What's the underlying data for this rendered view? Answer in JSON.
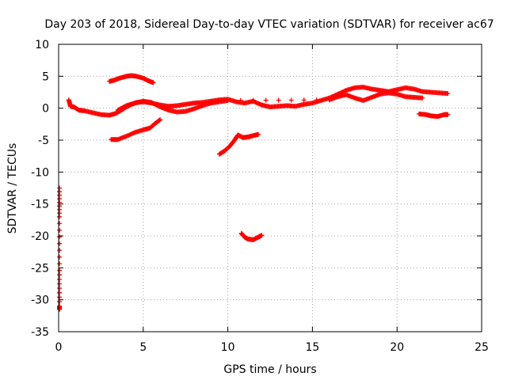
{
  "chart_data": {
    "type": "scatter",
    "title": "Day 203 of 2018, Sidereal Day-to-day VTEC variation (SDTVAR) for receiver ac67",
    "xlabel": "GPS time / hours",
    "ylabel": "SDTVAR / TECUs",
    "xlim": [
      0,
      25
    ],
    "ylim": [
      -35,
      10
    ],
    "xticks": [
      0,
      5,
      10,
      15,
      20,
      25
    ],
    "yticks": [
      10,
      5,
      0,
      -5,
      -10,
      -15,
      -20,
      -25,
      -30,
      -35
    ],
    "grid": true,
    "marker": "+",
    "color": "#ff0000",
    "series": [
      {
        "name": "main_track",
        "points": [
          [
            0.6,
            1.3
          ],
          [
            0.7,
            0.3
          ],
          [
            0.9,
            0.2
          ],
          [
            1.2,
            -0.3
          ],
          [
            1.5,
            -0.4
          ],
          [
            2.0,
            -0.7
          ],
          [
            2.5,
            -1.0
          ],
          [
            3.0,
            -1.1
          ],
          [
            3.4,
            -0.8
          ],
          [
            3.7,
            -0.3
          ],
          [
            4.0,
            0.2
          ],
          [
            4.3,
            0.6
          ],
          [
            4.6,
            0.9
          ],
          [
            5.0,
            1.0
          ],
          [
            5.5,
            0.8
          ],
          [
            6.0,
            0.5
          ],
          [
            6.5,
            0.3
          ],
          [
            7.0,
            0.4
          ],
          [
            7.5,
            0.6
          ],
          [
            8.0,
            0.8
          ],
          [
            8.5,
            0.9
          ],
          [
            9.0,
            1.1
          ],
          [
            9.5,
            1.3
          ],
          [
            10.0,
            1.4
          ],
          [
            10.5,
            1.0
          ],
          [
            11.0,
            0.8
          ],
          [
            11.5,
            1.1
          ],
          [
            12.0,
            0.5
          ],
          [
            12.5,
            0.2
          ],
          [
            13.0,
            0.3
          ],
          [
            13.5,
            0.4
          ],
          [
            14.0,
            0.3
          ],
          [
            14.5,
            0.6
          ],
          [
            15.0,
            0.8
          ],
          [
            15.5,
            1.2
          ],
          [
            16.0,
            1.6
          ],
          [
            16.5,
            2.2
          ],
          [
            17.0,
            2.8
          ],
          [
            17.5,
            3.2
          ],
          [
            18.0,
            3.3
          ],
          [
            18.5,
            3.0
          ],
          [
            19.0,
            2.8
          ],
          [
            19.5,
            2.6
          ],
          [
            20.0,
            2.9
          ],
          [
            20.5,
            3.2
          ],
          [
            21.0,
            3.0
          ],
          [
            21.5,
            2.6
          ],
          [
            22.0,
            2.5
          ],
          [
            22.5,
            2.4
          ],
          [
            23.0,
            2.3
          ]
        ]
      },
      {
        "name": "secondary_track",
        "points": [
          [
            3.5,
            -0.3
          ],
          [
            4.0,
            0.4
          ],
          [
            4.5,
            0.8
          ],
          [
            5.0,
            1.1
          ],
          [
            5.5,
            0.9
          ],
          [
            6.0,
            0.2
          ],
          [
            6.5,
            -0.3
          ],
          [
            7.0,
            -0.6
          ],
          [
            7.5,
            -0.5
          ],
          [
            8.0,
            -0.1
          ],
          [
            8.5,
            0.4
          ],
          [
            9.0,
            0.8
          ],
          [
            9.5,
            1.0
          ],
          [
            10.0,
            1.2
          ],
          [
            16.0,
            1.3
          ],
          [
            16.5,
            1.8
          ],
          [
            17.0,
            2.1
          ],
          [
            17.5,
            1.6
          ],
          [
            18.0,
            1.2
          ],
          [
            18.5,
            1.7
          ],
          [
            19.0,
            2.2
          ],
          [
            19.5,
            2.4
          ],
          [
            20.0,
            2.2
          ],
          [
            20.5,
            1.8
          ],
          [
            21.0,
            1.7
          ],
          [
            21.5,
            1.6
          ]
        ]
      },
      {
        "name": "upper_arc",
        "points": [
          [
            3.0,
            4.2
          ],
          [
            3.3,
            4.4
          ],
          [
            3.6,
            4.7
          ],
          [
            4.0,
            5.0
          ],
          [
            4.3,
            5.1
          ],
          [
            4.6,
            5.0
          ],
          [
            5.0,
            4.7
          ],
          [
            5.3,
            4.3
          ],
          [
            5.6,
            4.0
          ]
        ]
      },
      {
        "name": "lower_arc",
        "points": [
          [
            3.1,
            -4.9
          ],
          [
            3.5,
            -4.9
          ],
          [
            4.0,
            -4.4
          ],
          [
            4.5,
            -3.8
          ],
          [
            5.0,
            -3.4
          ],
          [
            5.4,
            -3.1
          ],
          [
            5.7,
            -2.4
          ],
          [
            6.0,
            -1.8
          ]
        ]
      },
      {
        "name": "right_dip",
        "points": [
          [
            21.3,
            -0.9
          ],
          [
            21.7,
            -1.0
          ],
          [
            22.0,
            -1.2
          ],
          [
            22.4,
            -1.3
          ],
          [
            22.8,
            -1.0
          ],
          [
            23.0,
            -1.0
          ]
        ]
      },
      {
        "name": "rising_track",
        "points": [
          [
            9.5,
            -7.2
          ],
          [
            9.8,
            -6.7
          ],
          [
            10.1,
            -6.0
          ],
          [
            10.4,
            -5.0
          ],
          [
            10.6,
            -4.2
          ],
          [
            10.9,
            -4.6
          ],
          [
            11.2,
            -4.5
          ],
          [
            11.5,
            -4.3
          ],
          [
            11.8,
            -4.1
          ]
        ]
      },
      {
        "name": "low_arc",
        "points": [
          [
            10.8,
            -19.6
          ],
          [
            11.0,
            -20.2
          ],
          [
            11.2,
            -20.5
          ],
          [
            11.5,
            -20.6
          ],
          [
            11.8,
            -20.2
          ],
          [
            12.0,
            -19.9
          ]
        ]
      },
      {
        "name": "outliers",
        "points": [
          [
            0.05,
            -12.5
          ],
          [
            0.05,
            -17.0
          ],
          [
            0.05,
            -25.4
          ],
          [
            0.05,
            -31.0
          ],
          [
            0.05,
            -31.5
          ]
        ]
      }
    ]
  }
}
